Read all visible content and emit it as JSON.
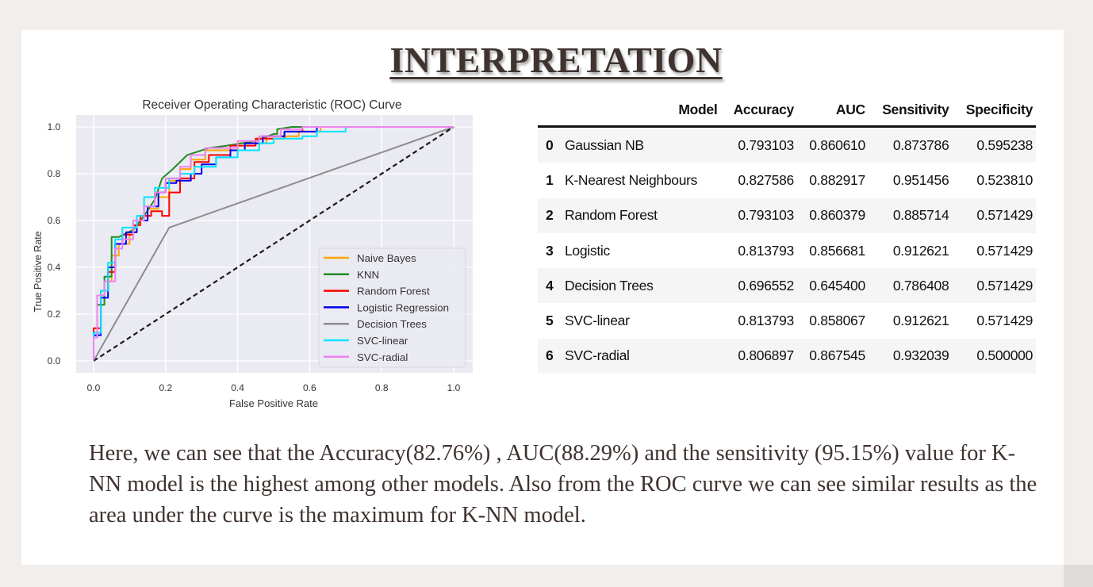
{
  "title": "INTERPRETATION",
  "chart_data": {
    "type": "line",
    "title": "Receiver Operating Characteristic (ROC) Curve",
    "xlabel": "False Positive Rate",
    "ylabel": "True Positive Rate",
    "xlim": [
      0.0,
      1.0
    ],
    "ylim": [
      0.0,
      1.0
    ],
    "xticks": [
      "0.0",
      "0.2",
      "0.4",
      "0.6",
      "0.8",
      "1.0"
    ],
    "yticks": [
      "0.0",
      "0.2",
      "0.4",
      "0.6",
      "0.8",
      "1.0"
    ],
    "grid": true,
    "legend_position": "lower-right",
    "series": [
      {
        "name": "Naive Bayes",
        "color": "#ffa500",
        "dash": false,
        "points": [
          [
            0,
            0
          ],
          [
            0,
            0.1
          ],
          [
            0.01,
            0.1
          ],
          [
            0.01,
            0.24
          ],
          [
            0.03,
            0.24
          ],
          [
            0.03,
            0.34
          ],
          [
            0.05,
            0.34
          ],
          [
            0.05,
            0.45
          ],
          [
            0.07,
            0.45
          ],
          [
            0.07,
            0.5
          ],
          [
            0.1,
            0.5
          ],
          [
            0.1,
            0.55
          ],
          [
            0.12,
            0.55
          ],
          [
            0.12,
            0.6
          ],
          [
            0.15,
            0.6
          ],
          [
            0.15,
            0.65
          ],
          [
            0.18,
            0.65
          ],
          [
            0.18,
            0.7
          ],
          [
            0.21,
            0.7
          ],
          [
            0.21,
            0.77
          ],
          [
            0.24,
            0.77
          ],
          [
            0.24,
            0.82
          ],
          [
            0.27,
            0.82
          ],
          [
            0.27,
            0.86
          ],
          [
            0.31,
            0.86
          ],
          [
            0.31,
            0.9
          ],
          [
            0.4,
            0.9
          ],
          [
            0.4,
            0.93
          ],
          [
            0.48,
            0.93
          ],
          [
            0.48,
            0.96
          ],
          [
            0.57,
            0.96
          ],
          [
            0.57,
            0.98
          ],
          [
            0.63,
            0.98
          ],
          [
            0.63,
            1.0
          ],
          [
            1.0,
            1.0
          ]
        ]
      },
      {
        "name": "KNN",
        "color": "#228b22",
        "dash": false,
        "points": [
          [
            0,
            0
          ],
          [
            0,
            0.1
          ],
          [
            0.01,
            0.1
          ],
          [
            0.01,
            0.24
          ],
          [
            0.03,
            0.24
          ],
          [
            0.03,
            0.36
          ],
          [
            0.05,
            0.36
          ],
          [
            0.05,
            0.53
          ],
          [
            0.07,
            0.53
          ],
          [
            0.11,
            0.56
          ],
          [
            0.14,
            0.62
          ],
          [
            0.17,
            0.69
          ],
          [
            0.19,
            0.78
          ],
          [
            0.22,
            0.82
          ],
          [
            0.26,
            0.88
          ],
          [
            0.32,
            0.91
          ],
          [
            0.37,
            0.92
          ],
          [
            0.45,
            0.94
          ],
          [
            0.5,
            0.97
          ],
          [
            0.51,
            0.97
          ],
          [
            0.51,
            0.99
          ],
          [
            0.55,
            1.0
          ],
          [
            1.0,
            1.0
          ]
        ]
      },
      {
        "name": "Random Forest",
        "color": "#ff0000",
        "dash": false,
        "points": [
          [
            0,
            0
          ],
          [
            0,
            0.14
          ],
          [
            0.02,
            0.14
          ],
          [
            0.02,
            0.3
          ],
          [
            0.04,
            0.3
          ],
          [
            0.04,
            0.38
          ],
          [
            0.06,
            0.38
          ],
          [
            0.06,
            0.5
          ],
          [
            0.08,
            0.5
          ],
          [
            0.08,
            0.54
          ],
          [
            0.11,
            0.54
          ],
          [
            0.11,
            0.58
          ],
          [
            0.13,
            0.58
          ],
          [
            0.13,
            0.62
          ],
          [
            0.16,
            0.62
          ],
          [
            0.16,
            0.64
          ],
          [
            0.19,
            0.64
          ],
          [
            0.19,
            0.62
          ],
          [
            0.21,
            0.62
          ],
          [
            0.21,
            0.72
          ],
          [
            0.24,
            0.72
          ],
          [
            0.24,
            0.78
          ],
          [
            0.28,
            0.78
          ],
          [
            0.28,
            0.85
          ],
          [
            0.32,
            0.85
          ],
          [
            0.32,
            0.88
          ],
          [
            0.38,
            0.88
          ],
          [
            0.38,
            0.92
          ],
          [
            0.45,
            0.92
          ],
          [
            0.45,
            0.95
          ],
          [
            0.53,
            0.95
          ],
          [
            0.53,
            0.98
          ],
          [
            0.58,
            0.98
          ],
          [
            0.58,
            1.0
          ],
          [
            1.0,
            1.0
          ]
        ]
      },
      {
        "name": "Logistic Regression",
        "color": "#0000ee",
        "dash": false,
        "points": [
          [
            0,
            0
          ],
          [
            0,
            0.11
          ],
          [
            0.02,
            0.11
          ],
          [
            0.02,
            0.27
          ],
          [
            0.04,
            0.27
          ],
          [
            0.04,
            0.4
          ],
          [
            0.06,
            0.4
          ],
          [
            0.06,
            0.5
          ],
          [
            0.09,
            0.5
          ],
          [
            0.09,
            0.55
          ],
          [
            0.12,
            0.55
          ],
          [
            0.12,
            0.6
          ],
          [
            0.15,
            0.6
          ],
          [
            0.15,
            0.66
          ],
          [
            0.18,
            0.66
          ],
          [
            0.18,
            0.72
          ],
          [
            0.2,
            0.72
          ],
          [
            0.2,
            0.76
          ],
          [
            0.23,
            0.76
          ],
          [
            0.23,
            0.77
          ],
          [
            0.27,
            0.77
          ],
          [
            0.27,
            0.8
          ],
          [
            0.3,
            0.8
          ],
          [
            0.3,
            0.84
          ],
          [
            0.34,
            0.84
          ],
          [
            0.34,
            0.87
          ],
          [
            0.38,
            0.87
          ],
          [
            0.38,
            0.9
          ],
          [
            0.42,
            0.9
          ],
          [
            0.42,
            0.93
          ],
          [
            0.47,
            0.93
          ],
          [
            0.47,
            0.96
          ],
          [
            0.53,
            0.96
          ],
          [
            0.53,
            0.98
          ],
          [
            0.62,
            0.98
          ],
          [
            0.62,
            1.0
          ],
          [
            1.0,
            1.0
          ]
        ]
      },
      {
        "name": "Decision Trees",
        "color": "#8c8c8c",
        "dash": false,
        "points": [
          [
            0,
            0
          ],
          [
            0.21,
            0.57
          ],
          [
            1.0,
            1.0
          ]
        ]
      },
      {
        "name": "SVC-linear",
        "color": "#00e5ff",
        "dash": false,
        "points": [
          [
            0,
            0
          ],
          [
            0,
            0.12
          ],
          [
            0.02,
            0.12
          ],
          [
            0.02,
            0.3
          ],
          [
            0.04,
            0.3
          ],
          [
            0.04,
            0.42
          ],
          [
            0.06,
            0.42
          ],
          [
            0.06,
            0.52
          ],
          [
            0.08,
            0.52
          ],
          [
            0.08,
            0.57
          ],
          [
            0.12,
            0.57
          ],
          [
            0.12,
            0.62
          ],
          [
            0.14,
            0.62
          ],
          [
            0.14,
            0.7
          ],
          [
            0.17,
            0.7
          ],
          [
            0.17,
            0.74
          ],
          [
            0.21,
            0.74
          ],
          [
            0.21,
            0.78
          ],
          [
            0.24,
            0.78
          ],
          [
            0.24,
            0.8
          ],
          [
            0.28,
            0.8
          ],
          [
            0.28,
            0.83
          ],
          [
            0.34,
            0.83
          ],
          [
            0.34,
            0.87
          ],
          [
            0.4,
            0.87
          ],
          [
            0.4,
            0.9
          ],
          [
            0.46,
            0.9
          ],
          [
            0.46,
            0.93
          ],
          [
            0.5,
            0.93
          ],
          [
            0.5,
            0.95
          ],
          [
            0.58,
            0.95
          ],
          [
            0.58,
            0.96
          ],
          [
            0.62,
            0.96
          ],
          [
            0.62,
            0.98
          ],
          [
            0.7,
            0.98
          ],
          [
            0.7,
            1.0
          ],
          [
            1.0,
            1.0
          ]
        ]
      },
      {
        "name": "SVC-radial",
        "color": "#ee82ee",
        "dash": false,
        "points": [
          [
            0,
            0
          ],
          [
            0,
            0.1
          ],
          [
            0.01,
            0.1
          ],
          [
            0.01,
            0.28
          ],
          [
            0.03,
            0.28
          ],
          [
            0.03,
            0.34
          ],
          [
            0.06,
            0.34
          ],
          [
            0.06,
            0.48
          ],
          [
            0.08,
            0.48
          ],
          [
            0.08,
            0.52
          ],
          [
            0.11,
            0.52
          ],
          [
            0.11,
            0.6
          ],
          [
            0.14,
            0.6
          ],
          [
            0.14,
            0.66
          ],
          [
            0.17,
            0.66
          ],
          [
            0.17,
            0.72
          ],
          [
            0.2,
            0.72
          ],
          [
            0.2,
            0.78
          ],
          [
            0.24,
            0.78
          ],
          [
            0.24,
            0.83
          ],
          [
            0.27,
            0.83
          ],
          [
            0.27,
            0.88
          ],
          [
            0.31,
            0.88
          ],
          [
            0.31,
            0.91
          ],
          [
            0.4,
            0.91
          ],
          [
            0.4,
            0.94
          ],
          [
            0.46,
            0.94
          ],
          [
            0.46,
            0.96
          ],
          [
            0.52,
            0.96
          ],
          [
            0.52,
            0.99
          ],
          [
            0.58,
            0.99
          ],
          [
            0.58,
            1.0
          ],
          [
            1.0,
            1.0
          ]
        ]
      },
      {
        "name": "",
        "color": "#1a1a1a",
        "dash": true,
        "points": [
          [
            0,
            0
          ],
          [
            1,
            1
          ]
        ]
      }
    ]
  },
  "table": {
    "columns": [
      "Model",
      "Accuracy",
      "AUC",
      "Sensitivity",
      "Specificity"
    ],
    "rows": [
      {
        "idx": "0",
        "model": "Gaussian NB",
        "accuracy": "0.793103",
        "auc": "0.860610",
        "sensitivity": "0.873786",
        "specificity": "0.595238"
      },
      {
        "idx": "1",
        "model": "K-Nearest Neighbours",
        "accuracy": "0.827586",
        "auc": "0.882917",
        "sensitivity": "0.951456",
        "specificity": "0.523810"
      },
      {
        "idx": "2",
        "model": "Random Forest",
        "accuracy": "0.793103",
        "auc": "0.860379",
        "sensitivity": "0.885714",
        "specificity": "0.571429"
      },
      {
        "idx": "3",
        "model": "Logistic",
        "accuracy": "0.813793",
        "auc": "0.856681",
        "sensitivity": "0.912621",
        "specificity": "0.571429"
      },
      {
        "idx": "4",
        "model": "Decision Trees",
        "accuracy": "0.696552",
        "auc": "0.645400",
        "sensitivity": "0.786408",
        "specificity": "0.571429"
      },
      {
        "idx": "5",
        "model": "SVC-linear",
        "accuracy": "0.813793",
        "auc": "0.858067",
        "sensitivity": "0.912621",
        "specificity": "0.571429"
      },
      {
        "idx": "6",
        "model": "SVC-radial",
        "accuracy": "0.806897",
        "auc": "0.867545",
        "sensitivity": "0.932039",
        "specificity": "0.500000"
      }
    ]
  },
  "paragraph": "Here, we can see that the Accuracy(82.76%) , AUC(88.29%) and the sensitivity (95.15%) value for K-NN model is the highest among other models. Also from the ROC curve we can see similar results as the area under the curve is the maximum for K-NN model."
}
